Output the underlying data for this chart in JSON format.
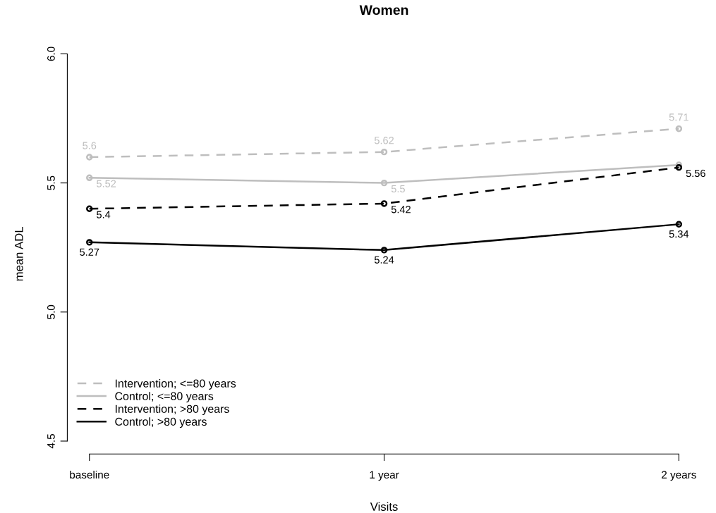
{
  "chart_data": {
    "type": "line",
    "title": "Women",
    "xlabel": "Visits",
    "ylabel": "mean ADL",
    "categories": [
      "baseline",
      "1 year",
      "2 years"
    ],
    "ylim": [
      4.45,
      6.0
    ],
    "yticks": [
      4.5,
      {
        "value": 5.0,
        "label": "5.0"
      },
      5.5,
      {
        "value": 6.0,
        "label": "6.0"
      }
    ],
    "grid": false,
    "legend": "bottom left",
    "marker": "circle",
    "series": [
      {
        "name": "Intervention; <=80 years",
        "color": "#bebebe",
        "line_style": "dashed",
        "values": [
          5.6,
          5.62,
          5.71
        ],
        "value_labels": [
          "5.6",
          "5.62",
          "5.71"
        ]
      },
      {
        "name": "Control; <=80 years",
        "color": "#bebebe",
        "line_style": "solid",
        "values": [
          5.52,
          5.5,
          5.57
        ],
        "value_labels": [
          "5.52",
          "5.5",
          null
        ]
      },
      {
        "name": "Intervention; >80 years",
        "color": "#000000",
        "line_style": "dashed",
        "values": [
          5.4,
          5.42,
          5.56
        ],
        "value_labels": [
          "5.4",
          "5.42",
          "5.56"
        ]
      },
      {
        "name": "Control; >80 years",
        "color": "#000000",
        "line_style": "solid",
        "values": [
          5.27,
          5.24,
          5.34
        ],
        "value_labels": [
          "5.27",
          "5.24",
          "5.34"
        ]
      }
    ]
  }
}
